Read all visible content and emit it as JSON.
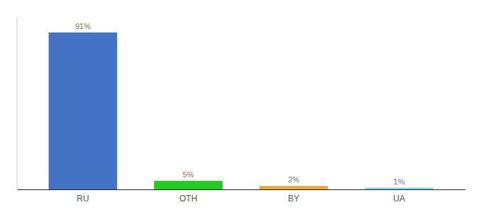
{
  "chart_data": {
    "type": "bar",
    "categories": [
      "RU",
      "OTH",
      "BY",
      "UA"
    ],
    "values": [
      91,
      5,
      2,
      1
    ],
    "value_labels": [
      "91%",
      "5%",
      "2%",
      "1%"
    ],
    "colors": [
      "#4472c4",
      "#22cc22",
      "#f5a623",
      "#87ceeb"
    ],
    "ylim": [
      0,
      100
    ],
    "data_labels": true,
    "tick_labels": "x",
    "grid": false
  }
}
